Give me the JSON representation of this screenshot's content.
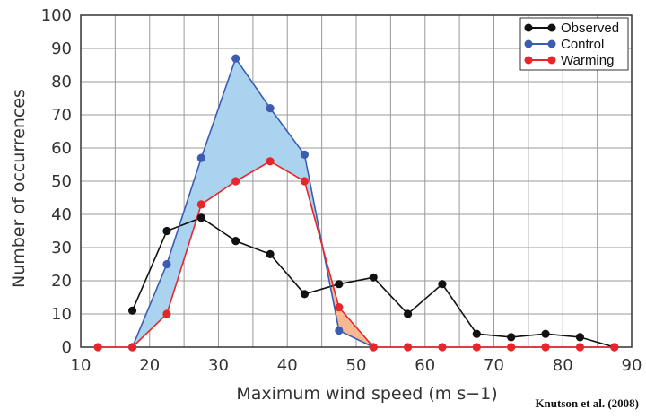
{
  "chart_data": {
    "type": "line",
    "xlabel": "Maximum wind speed (m s−1)",
    "ylabel": "Number of occurrences",
    "xlim": [
      10,
      90
    ],
    "ylim": [
      0,
      100
    ],
    "x_ticks": [
      "10",
      "20",
      "30",
      "40",
      "50",
      "60",
      "70",
      "80",
      "90"
    ],
    "y_ticks": [
      "0",
      "10",
      "20",
      "30",
      "40",
      "50",
      "60",
      "70",
      "80",
      "90",
      "100"
    ],
    "grid": true,
    "legend_position": "top-right",
    "series": [
      {
        "name": "Observed",
        "color": "#111111",
        "x": [
          17.5,
          22.5,
          27.5,
          32.5,
          37.5,
          42.5,
          47.5,
          52.5,
          57.5,
          62.5,
          67.5,
          72.5,
          77.5,
          82.5,
          87.5
        ],
        "y": [
          11,
          35,
          39,
          32,
          28,
          16,
          19,
          21,
          10,
          19,
          4,
          3,
          4,
          3,
          0
        ]
      },
      {
        "name": "Control",
        "color": "#3b5cb0",
        "x": [
          17.5,
          22.5,
          27.5,
          32.5,
          37.5,
          42.5,
          47.5,
          52.5
        ],
        "y": [
          0,
          25,
          57,
          87,
          72,
          58,
          5,
          0
        ]
      },
      {
        "name": "Warming",
        "color": "#e8252a",
        "x": [
          12.5,
          17.5,
          22.5,
          27.5,
          32.5,
          37.5,
          42.5,
          47.5,
          52.5,
          57.5,
          62.5,
          67.5,
          72.5,
          77.5,
          82.5,
          87.5
        ],
        "y": [
          0,
          0,
          10,
          43,
          50,
          56,
          50,
          12,
          0,
          0,
          0,
          0,
          0,
          0,
          0,
          0
        ]
      }
    ],
    "fill_colors": {
      "control_above": "#a9d3ee",
      "warming_above": "#f6b992"
    }
  },
  "credit": "Knutson et al. (2008)"
}
